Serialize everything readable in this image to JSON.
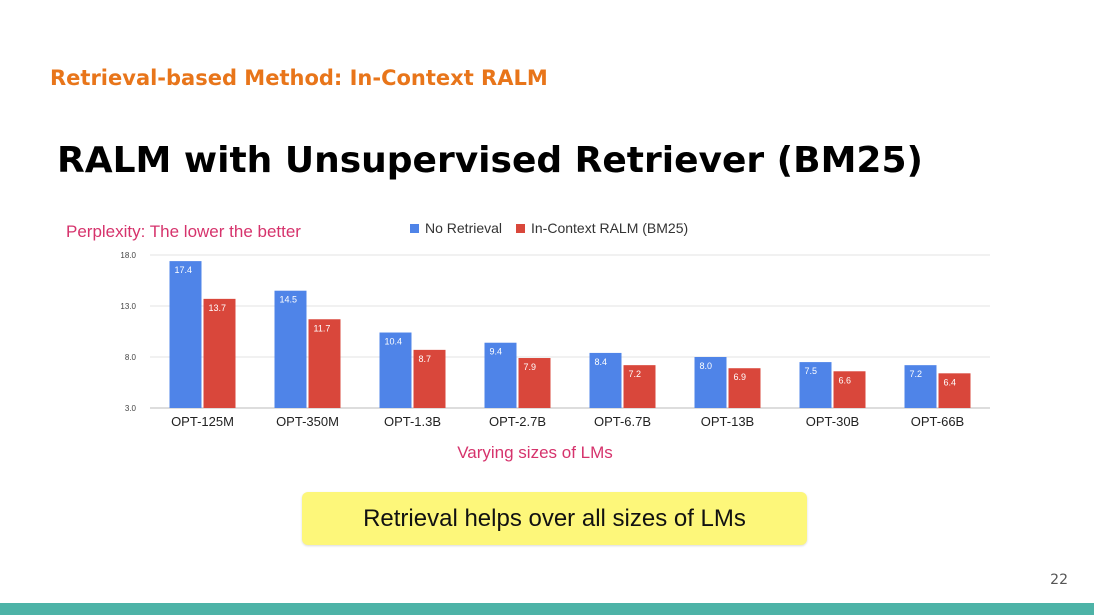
{
  "slide": {
    "section_title": "Retrieval-based Method: In-Context RALM",
    "title": "RALM with Unsupervised Retriever (BM25)",
    "callout": "Retrieval helps over all sizes of LMs",
    "page_number": "22"
  },
  "colors": {
    "section_title": "#e8751a",
    "chart_annotation": "#d6336c",
    "no_retrieval": "#4f84e8",
    "in_context_ralm": "#d9473b",
    "callout_bg": "#fdf77a",
    "bottom_bar": "#4db3a7"
  },
  "chart_data": {
    "type": "bar",
    "title": "Perplexity: The lower the better",
    "xlabel": "Varying sizes of LMs",
    "ylabel": "",
    "categories": [
      "OPT-125M",
      "OPT-350M",
      "OPT-1.3B",
      "OPT-2.7B",
      "OPT-6.7B",
      "OPT-13B",
      "OPT-30B",
      "OPT-66B"
    ],
    "series": [
      {
        "name": "No Retrieval",
        "values": [
          17.4,
          14.5,
          10.4,
          9.4,
          8.4,
          8.0,
          7.5,
          7.2
        ]
      },
      {
        "name": "In-Context RALM (BM25)",
        "values": [
          13.7,
          11.7,
          8.7,
          7.9,
          7.2,
          6.9,
          6.6,
          6.4
        ]
      }
    ],
    "value_labels": [
      [
        "17.4",
        "14.5",
        "10.4",
        "9.4",
        "8.4",
        "8.0",
        "7.5",
        "7.2"
      ],
      [
        "13.7",
        "11.7",
        "8.7",
        "7.9",
        "7.2",
        "6.9",
        "6.6",
        "6.4"
      ]
    ],
    "ylim": [
      3.0,
      18.0
    ],
    "yticks": [
      3.0,
      8.0,
      13.0,
      18.0
    ],
    "ytick_labels": [
      "3.0",
      "8.0",
      "13.0",
      "18.0"
    ],
    "grid": true,
    "legend_position": "top"
  }
}
